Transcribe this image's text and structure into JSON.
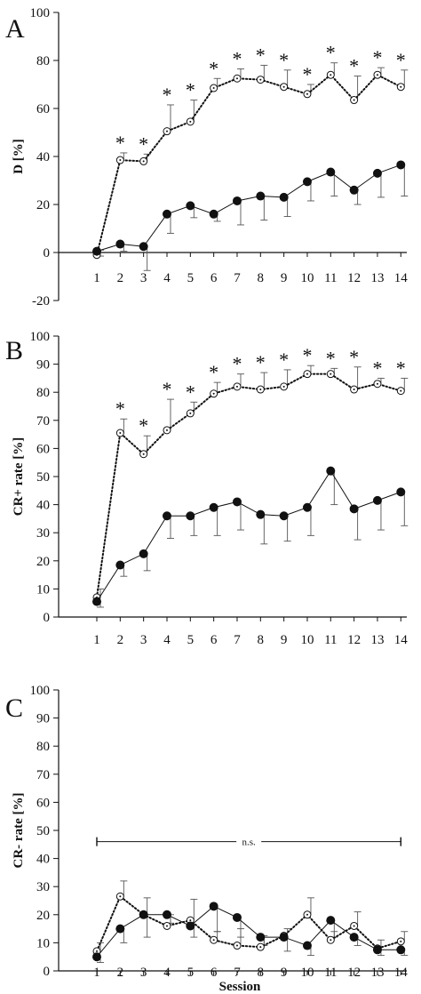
{
  "colors": {
    "ink": "#111111",
    "error_bar": "#555555",
    "background": "#ffffff"
  },
  "chart_data": [
    {
      "type": "line",
      "panel_label": "A",
      "ylabel": "D [%]",
      "xlabel": "",
      "ylim": [
        -20,
        100
      ],
      "yticks": [
        -20,
        0,
        20,
        40,
        60,
        80,
        100
      ],
      "x": [
        1,
        2,
        3,
        4,
        5,
        6,
        7,
        8,
        9,
        10,
        11,
        12,
        13,
        14
      ],
      "grid": false,
      "series": [
        {
          "marker": "open-circle",
          "line": "dotted",
          "values": [
            -1,
            38.5,
            38,
            50.5,
            54.5,
            68.5,
            72.5,
            72,
            69,
            66,
            74,
            63.5,
            74,
            69
          ],
          "error_upper": [
            2,
            3,
            3,
            11,
            9,
            4,
            4,
            6,
            7,
            4,
            5,
            10,
            3,
            7
          ]
        },
        {
          "marker": "filled-circle",
          "line": "solid",
          "values": [
            0.5,
            3.5,
            2.5,
            16,
            19.5,
            16,
            21.5,
            23.5,
            23,
            29.5,
            33.5,
            26,
            33,
            36.5
          ],
          "error_lower": [
            2,
            3,
            10,
            8,
            5,
            3,
            10,
            10,
            8,
            8,
            10,
            6,
            10,
            13
          ]
        }
      ],
      "significance_markers": [
        "*",
        "*",
        "*",
        "*",
        "*",
        "*",
        "*",
        "*",
        "*",
        "*",
        "*",
        "*",
        "*"
      ],
      "significance_sessions": [
        2,
        3,
        4,
        5,
        6,
        7,
        8,
        9,
        10,
        11,
        12,
        13,
        14
      ]
    },
    {
      "type": "line",
      "panel_label": "B",
      "ylabel": "CR+ rate [%]",
      "xlabel": "",
      "ylim": [
        0,
        100
      ],
      "yticks": [
        0,
        10,
        20,
        30,
        40,
        50,
        60,
        70,
        80,
        90,
        100
      ],
      "x": [
        1,
        2,
        3,
        4,
        5,
        6,
        7,
        8,
        9,
        10,
        11,
        12,
        13,
        14
      ],
      "grid": false,
      "series": [
        {
          "marker": "open-circle",
          "line": "dotted",
          "values": [
            7,
            65.5,
            58,
            66.5,
            72.5,
            79.5,
            82,
            81,
            82,
            86.5,
            86.5,
            81,
            83,
            80.5
          ],
          "error_upper": [
            3,
            5,
            6.5,
            11,
            4,
            4,
            4.5,
            6,
            6,
            3,
            2,
            8,
            2,
            4.5
          ]
        },
        {
          "marker": "filled-circle",
          "line": "solid",
          "values": [
            5.5,
            18.5,
            22.5,
            36,
            36,
            39,
            41,
            36.5,
            36,
            39,
            52,
            38.5,
            41.5,
            44.5
          ],
          "error_lower": [
            2,
            4,
            6,
            8,
            7,
            10,
            10,
            10.5,
            9,
            10,
            12,
            11,
            10.5,
            12
          ]
        }
      ],
      "significance_markers": [
        "*",
        "*",
        "*",
        "*",
        "*",
        "*",
        "*",
        "*",
        "*",
        "*",
        "*",
        "*",
        "*"
      ],
      "significance_sessions": [
        2,
        3,
        4,
        5,
        6,
        7,
        8,
        9,
        10,
        11,
        12,
        13,
        14
      ]
    },
    {
      "type": "line",
      "panel_label": "C",
      "ylabel": "CR- rate [%]",
      "xlabel": "Session",
      "ylim": [
        0,
        100
      ],
      "yticks": [
        0,
        10,
        20,
        30,
        40,
        50,
        60,
        70,
        80,
        90,
        100
      ],
      "x": [
        1,
        2,
        3,
        4,
        5,
        6,
        7,
        8,
        9,
        10,
        11,
        12,
        13,
        14
      ],
      "grid": false,
      "series": [
        {
          "marker": "open-circle",
          "line": "dotted",
          "values": [
            7,
            26.5,
            20,
            16,
            18,
            11,
            9,
            8.5,
            12.5,
            20,
            11,
            16,
            8,
            10.5
          ],
          "error_upper": [
            3,
            5.5,
            6,
            4,
            7.5,
            3,
            6,
            4,
            2.5,
            6,
            3,
            5,
            3,
            3.5
          ]
        },
        {
          "marker": "filled-circle",
          "line": "solid",
          "values": [
            5,
            15,
            20,
            20,
            16,
            23,
            19,
            12,
            12,
            9,
            18,
            12,
            7.5,
            7.5
          ],
          "error_lower": [
            2,
            5,
            8,
            3,
            4,
            9,
            7,
            3,
            5,
            3.5,
            6,
            3,
            2,
            2
          ]
        }
      ],
      "annotation": {
        "text": "n.s.",
        "x_from": 1,
        "x_to": 14,
        "y": 46
      }
    }
  ]
}
